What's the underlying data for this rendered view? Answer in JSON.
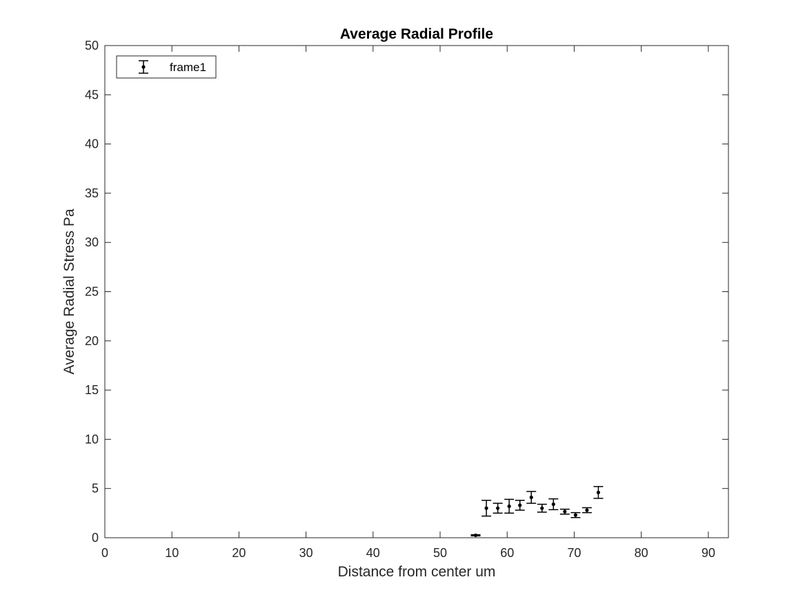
{
  "chart_data": {
    "type": "scatter",
    "title": "Average Radial Profile",
    "xlabel": "Distance from center um",
    "ylabel": "Average Radial Stress Pa",
    "xlim": [
      0,
      93
    ],
    "ylim": [
      0,
      50
    ],
    "xticks": [
      0,
      10,
      20,
      30,
      40,
      50,
      60,
      70,
      80,
      90
    ],
    "yticks": [
      0,
      5,
      10,
      15,
      20,
      25,
      30,
      35,
      40,
      45,
      50
    ],
    "grid": false,
    "legend_position": "top-left",
    "series": [
      {
        "name": "frame1",
        "color": "#000000",
        "marker": "dot-with-errorbars",
        "points": [
          {
            "x": 55.3,
            "y": 0.25,
            "err": 0.06
          },
          {
            "x": 56.9,
            "y": 3.0,
            "err": 0.8
          },
          {
            "x": 58.6,
            "y": 3.0,
            "err": 0.5
          },
          {
            "x": 60.3,
            "y": 3.2,
            "err": 0.7
          },
          {
            "x": 61.9,
            "y": 3.3,
            "err": 0.5
          },
          {
            "x": 63.6,
            "y": 4.1,
            "err": 0.6
          },
          {
            "x": 65.2,
            "y": 3.0,
            "err": 0.4
          },
          {
            "x": 66.9,
            "y": 3.4,
            "err": 0.55
          },
          {
            "x": 68.6,
            "y": 2.65,
            "err": 0.25
          },
          {
            "x": 70.2,
            "y": 2.3,
            "err": 0.25
          },
          {
            "x": 71.9,
            "y": 2.8,
            "err": 0.25
          },
          {
            "x": 73.6,
            "y": 4.6,
            "err": 0.6
          }
        ]
      }
    ]
  }
}
